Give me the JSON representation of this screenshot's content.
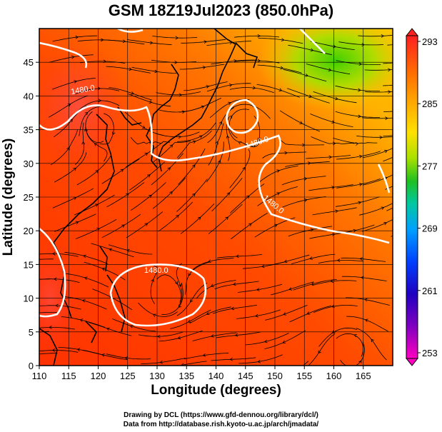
{
  "title": "GSM 18Z19Jul2023 (850.0hPa)",
  "x_axis": {
    "label": "Longitude (degrees)",
    "ticks": [
      "110",
      "115",
      "120",
      "125",
      "130",
      "135",
      "140",
      "145",
      "150",
      "155",
      "160",
      "165"
    ]
  },
  "y_axis": {
    "label": "Latitude (degrees)",
    "ticks": [
      "0",
      "5",
      "10",
      "15",
      "20",
      "25",
      "30",
      "35",
      "40",
      "45"
    ]
  },
  "colorbar": {
    "labels": [
      "293",
      "285",
      "277",
      "269",
      "261",
      "253"
    ],
    "colors": [
      "#ff0000",
      "#ff6a00",
      "#ffb000",
      "#ffd800",
      "#a8e000",
      "#20c000",
      "#00c8a0",
      "#00a0ff",
      "#0040ff",
      "#2000c0",
      "#8000c0",
      "#ff00c0"
    ]
  },
  "contours": [
    {
      "label": "1480.0"
    },
    {
      "label": "1480.0"
    },
    {
      "label": "1480.0"
    },
    {
      "label": "1480.0"
    }
  ],
  "credits": {
    "line1": "Drawing by DCL (https://www.gfd-dennou.org/library/dcl/)",
    "line2": "Data from http://database.rish.kyoto-u.ac.jp/arch/jmadata/"
  }
}
